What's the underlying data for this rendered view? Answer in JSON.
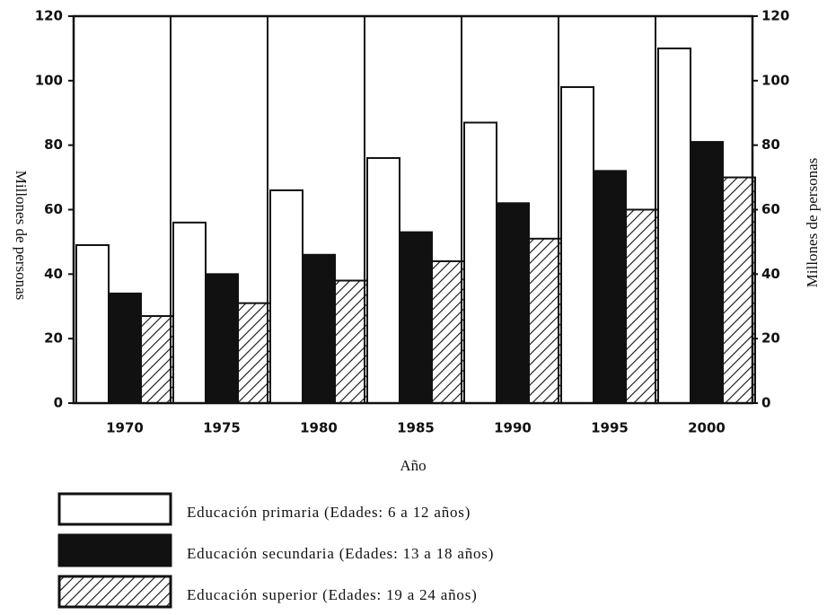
{
  "chart_data": {
    "type": "bar",
    "xlabel": "Año",
    "ylabel": "Millones de personas",
    "y2label": "Millones de personas",
    "categories": [
      "1970",
      "1975",
      "1980",
      "1985",
      "1990",
      "1995",
      "2000"
    ],
    "series": [
      {
        "name": "Educación primaria (Edades: 6 a 12 años)",
        "color": "#ffffff",
        "values": [
          49,
          56,
          66,
          76,
          87,
          98,
          110
        ]
      },
      {
        "name": "Educación secundaria (Edades: 13 a 18 años)",
        "color": "#111111",
        "values": [
          34,
          40,
          46,
          53,
          62,
          72,
          81
        ]
      },
      {
        "name": "Educación superior (Edades: 19 a 24 años)",
        "color": "#ffffff",
        "hatch": true,
        "values": [
          27,
          31,
          38,
          44,
          51,
          60,
          70
        ]
      }
    ],
    "ylim": [
      0,
      120
    ],
    "yticks": [
      0,
      20,
      40,
      60,
      80,
      100,
      120
    ],
    "y2lim": [
      0,
      120
    ],
    "y2ticks": [
      0,
      20,
      40,
      60,
      80,
      100,
      120
    ],
    "legend": "bottom"
  }
}
